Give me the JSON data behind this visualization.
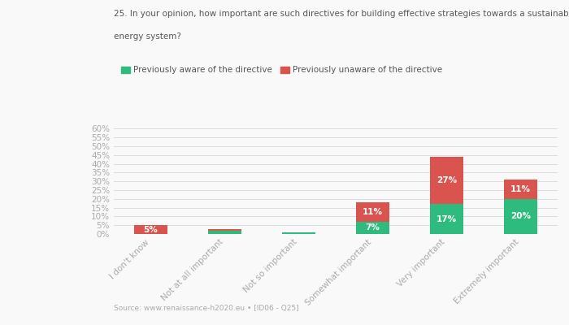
{
  "title_line1": "25. In your opinion, how important are such directives for building effective strategies towards a sustainable",
  "title_line2": "energy system?",
  "categories": [
    "I don't know",
    "Not at all important",
    "Not so important",
    "Somewhat important",
    "Very important",
    "Extremely important"
  ],
  "aware": [
    0,
    2,
    1,
    7,
    17,
    20
  ],
  "unaware": [
    5,
    1,
    0,
    11,
    27,
    11
  ],
  "aware_labels": [
    "",
    "",
    "",
    "7%",
    "17%",
    "20%"
  ],
  "unaware_labels": [
    "5%",
    "",
    "",
    "11%",
    "27%",
    "11%"
  ],
  "color_aware": "#2ebc7e",
  "color_unaware": "#d9534f",
  "legend_aware": "Previously aware of the directive",
  "legend_unaware": "Previously unaware of the directive",
  "ytick_vals": [
    0,
    5,
    10,
    15,
    20,
    25,
    30,
    35,
    40,
    45,
    50,
    55,
    60
  ],
  "ylabel_ticks": [
    "0%",
    "5%",
    "10%",
    "15%",
    "20%",
    "25%",
    "30%",
    "35%",
    "40%",
    "45%",
    "50%",
    "55%",
    "60%"
  ],
  "ylim": [
    0,
    63
  ],
  "source": "Source: www.renaissance-h2020.eu • [ID06 - Q25]",
  "background_color": "#f9f9f9",
  "grid_color": "#dddddd",
  "bar_width": 0.45,
  "label_fontsize": 7.5,
  "tick_fontsize": 7.5,
  "title_fontsize": 7.5
}
